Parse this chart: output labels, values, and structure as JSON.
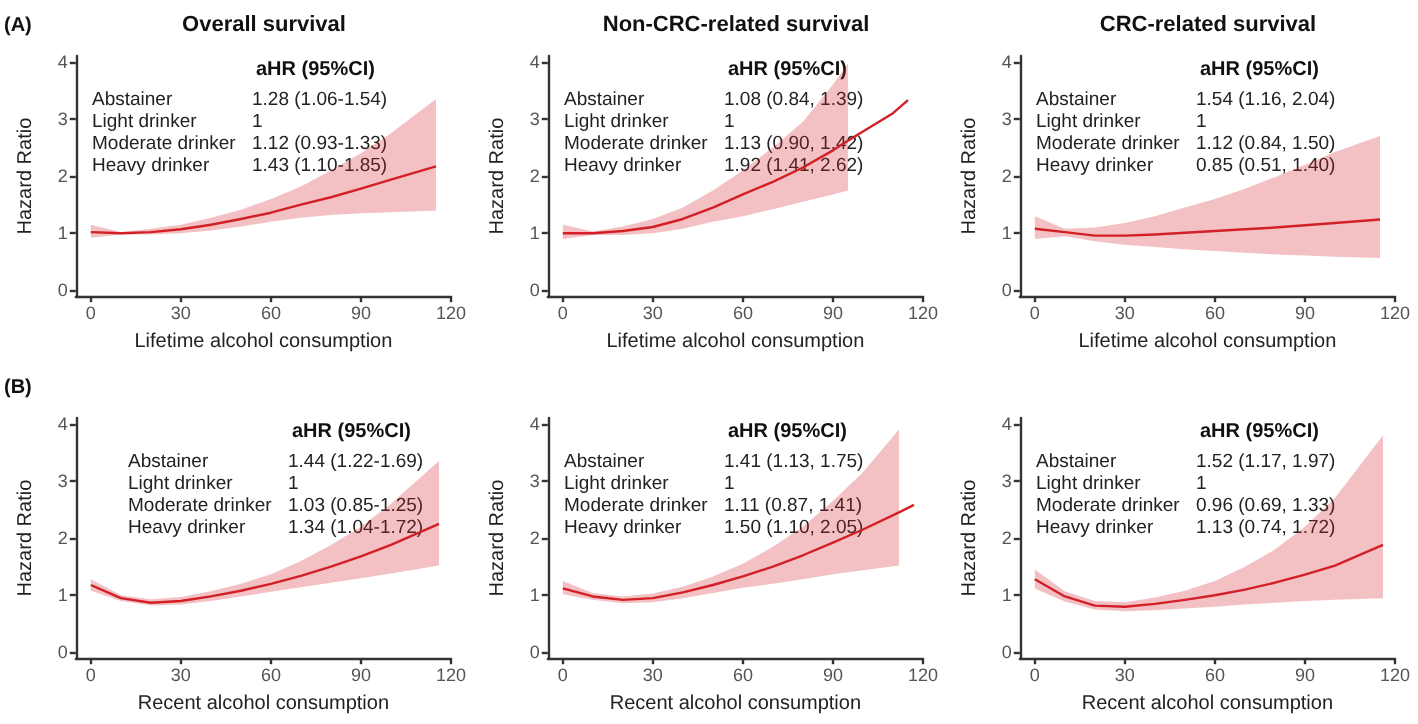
{
  "chart_data": [
    {
      "type": "line",
      "title": "Overall survival",
      "xlabel": "Lifetime alcohol consumption",
      "ylabel": "Hazard Ratio",
      "xlim": [
        -5,
        120
      ],
      "xticks": [
        0,
        30,
        60,
        90,
        120
      ],
      "ylim": [
        -0.1,
        4.1
      ],
      "yticks": [
        0,
        1,
        2,
        3,
        4
      ],
      "grid": false,
      "annotations": [
        "aHR (95%CI)",
        "Abstainer",
        "1.28 (1.06-1.54)",
        "Light drinker",
        "1",
        "Moderate drinker",
        "1.12 (0.93-1.33)",
        "Heavy drinker",
        "1.43 (1.10-1.85)",
        "(A)"
      ],
      "series": [
        {
          "color": "#d32027",
          "x": [
            0,
            10,
            20,
            30,
            40,
            50,
            60,
            70,
            80,
            90,
            100,
            115
          ],
          "values": [
            1.02,
            1.0,
            1.02,
            1.07,
            1.15,
            1.25,
            1.36,
            1.5,
            1.63,
            1.78,
            1.94,
            2.17
          ],
          "lower": [
            0.92,
            0.98,
            0.98,
            1.0,
            1.05,
            1.12,
            1.2,
            1.27,
            1.32,
            1.35,
            1.37,
            1.4
          ],
          "upper": [
            1.15,
            1.02,
            1.08,
            1.15,
            1.27,
            1.41,
            1.6,
            1.82,
            2.1,
            2.4,
            2.75,
            3.35
          ]
        }
      ]
    },
    {
      "type": "line",
      "title": "Non-CRC-related survival",
      "xlabel": "Lifetime alcohol consumption",
      "ylabel": "Hazard Ratio",
      "xlim": [
        -5,
        120
      ],
      "xticks": [
        0,
        30,
        60,
        90,
        120
      ],
      "ylim": [
        -0.1,
        4.1
      ],
      "yticks": [
        0,
        1,
        2,
        3,
        4
      ],
      "grid": false,
      "annotations": [
        "aHR (95%CI)",
        "Abstainer",
        "1.08 (0.84, 1.39)",
        "Light drinker",
        "1",
        "Moderate drinker",
        "1.13 (0.90, 1.42)",
        "Heavy drinker",
        "1.92 (1.41, 2.62)"
      ],
      "series": [
        {
          "color": "#d32027",
          "x": [
            0,
            10,
            20,
            30,
            40,
            50,
            60,
            70,
            80,
            90,
            95,
            100,
            110,
            115
          ],
          "values": [
            1.0,
            1.0,
            1.04,
            1.11,
            1.25,
            1.45,
            1.68,
            1.9,
            2.15,
            2.45,
            2.62,
            2.78,
            3.1,
            3.33
          ],
          "lower": [
            0.9,
            0.97,
            0.97,
            1.0,
            1.08,
            1.2,
            1.3,
            1.42,
            1.55,
            1.68,
            1.75,
            null,
            null,
            null
          ],
          "upper": [
            1.15,
            1.03,
            1.12,
            1.25,
            1.45,
            1.75,
            2.1,
            2.5,
            2.95,
            3.6,
            3.97,
            null,
            null,
            null
          ]
        }
      ]
    },
    {
      "type": "line",
      "title": "CRC-related survival",
      "xlabel": "Lifetime alcohol consumption",
      "ylabel": "Hazard Ratio",
      "xlim": [
        -5,
        120
      ],
      "xticks": [
        0,
        30,
        60,
        90,
        120
      ],
      "ylim": [
        -0.1,
        4.1
      ],
      "yticks": [
        0,
        1,
        2,
        3,
        4
      ],
      "grid": false,
      "annotations": [
        "aHR (95%CI)",
        "Abstainer",
        "1.54 (1.16, 2.04)",
        "Light drinker",
        "1",
        "Moderate drinker",
        "1.12 (0.84, 1.50)",
        "Heavy drinker",
        "0.85 (0.51, 1.40)"
      ],
      "series": [
        {
          "color": "#d32027",
          "x": [
            0,
            10,
            20,
            30,
            40,
            50,
            60,
            70,
            80,
            90,
            100,
            115
          ],
          "values": [
            1.08,
            1.02,
            0.96,
            0.96,
            0.98,
            1.01,
            1.04,
            1.07,
            1.1,
            1.14,
            1.18,
            1.24
          ],
          "lower": [
            0.9,
            0.95,
            0.86,
            0.8,
            0.76,
            0.72,
            0.69,
            0.66,
            0.63,
            0.61,
            0.59,
            0.57
          ],
          "upper": [
            1.3,
            1.08,
            1.1,
            1.18,
            1.3,
            1.45,
            1.6,
            1.78,
            1.98,
            2.2,
            2.42,
            2.7
          ]
        }
      ]
    },
    {
      "type": "line",
      "xlabel": "Recent alcohol consumption",
      "ylabel": "Hazard Ratio",
      "xlim": [
        -5,
        120
      ],
      "xticks": [
        0,
        30,
        60,
        90,
        120
      ],
      "ylim": [
        -0.1,
        4.1
      ],
      "yticks": [
        0,
        1,
        2,
        3,
        4
      ],
      "grid": false,
      "annotations": [
        "aHR (95%CI)",
        "Abstainer",
        "1.44 (1.22-1.69)",
        "Light drinker",
        "1",
        "Moderate drinker",
        "1.03 (0.85-1.25)",
        "Heavy drinker",
        "1.34 (1.04-1.72)",
        "(B)"
      ],
      "series": [
        {
          "color": "#d32027",
          "x": [
            0,
            10,
            20,
            30,
            40,
            50,
            60,
            70,
            80,
            90,
            100,
            116
          ],
          "values": [
            1.18,
            0.95,
            0.87,
            0.9,
            0.98,
            1.08,
            1.2,
            1.34,
            1.5,
            1.68,
            1.88,
            2.25
          ],
          "lower": [
            1.08,
            0.9,
            0.82,
            0.84,
            0.9,
            0.98,
            1.06,
            1.14,
            1.22,
            1.3,
            1.38,
            1.52
          ],
          "upper": [
            1.28,
            1.0,
            0.93,
            0.97,
            1.07,
            1.2,
            1.37,
            1.6,
            1.88,
            2.2,
            2.6,
            3.35
          ]
        }
      ]
    },
    {
      "type": "line",
      "xlabel": "Recent alcohol consumption",
      "ylabel": "Hazard Ratio",
      "xlim": [
        -5,
        120
      ],
      "xticks": [
        0,
        30,
        60,
        90,
        120
      ],
      "ylim": [
        -0.1,
        4.1
      ],
      "yticks": [
        0,
        1,
        2,
        3,
        4
      ],
      "grid": false,
      "annotations": [
        "aHR (95%CI)",
        "Abstainer",
        "1.41 (1.13, 1.75)",
        "Light drinker",
        "1",
        "Moderate drinker",
        "1.11 (0.87, 1.41)",
        "Heavy drinker",
        "1.50 (1.10, 2.05)"
      ],
      "series": [
        {
          "color": "#d32027",
          "x": [
            0,
            10,
            20,
            30,
            40,
            50,
            60,
            70,
            80,
            90,
            100,
            112,
            117
          ],
          "values": [
            1.12,
            0.98,
            0.92,
            0.95,
            1.05,
            1.18,
            1.33,
            1.5,
            1.7,
            1.92,
            2.15,
            2.45,
            2.58
          ],
          "lower": [
            1.02,
            0.92,
            0.86,
            0.88,
            0.95,
            1.04,
            1.13,
            1.2,
            1.28,
            1.37,
            1.44,
            1.52,
            null
          ],
          "upper": [
            1.25,
            1.04,
            0.98,
            1.03,
            1.15,
            1.33,
            1.55,
            1.85,
            2.2,
            2.65,
            3.15,
            3.9,
            null
          ]
        }
      ]
    },
    {
      "type": "line",
      "xlabel": "Recent alcohol consumption",
      "ylabel": "Hazard Ratio",
      "xlim": [
        -5,
        120
      ],
      "xticks": [
        0,
        30,
        60,
        90,
        120
      ],
      "ylim": [
        -0.1,
        4.1
      ],
      "yticks": [
        0,
        1,
        2,
        3,
        4
      ],
      "grid": false,
      "annotations": [
        "aHR (95%CI)",
        "Abstainer",
        "1.52 (1.17, 1.97)",
        "Light drinker",
        "1",
        "Moderate drinker",
        "0.96 (0.69, 1.33)",
        "Heavy drinker",
        "1.13 (0.74, 1.72)"
      ],
      "series": [
        {
          "color": "#d32027",
          "x": [
            0,
            10,
            20,
            30,
            40,
            50,
            60,
            70,
            80,
            90,
            100,
            116
          ],
          "values": [
            1.28,
            0.98,
            0.82,
            0.8,
            0.85,
            0.92,
            1.0,
            1.1,
            1.22,
            1.36,
            1.52,
            1.88
          ],
          "lower": [
            1.12,
            0.89,
            0.75,
            0.72,
            0.74,
            0.77,
            0.8,
            0.84,
            0.87,
            0.9,
            0.92,
            0.95
          ],
          "upper": [
            1.45,
            1.07,
            0.9,
            0.88,
            0.96,
            1.08,
            1.25,
            1.5,
            1.8,
            2.2,
            2.7,
            3.8
          ]
        }
      ]
    }
  ]
}
